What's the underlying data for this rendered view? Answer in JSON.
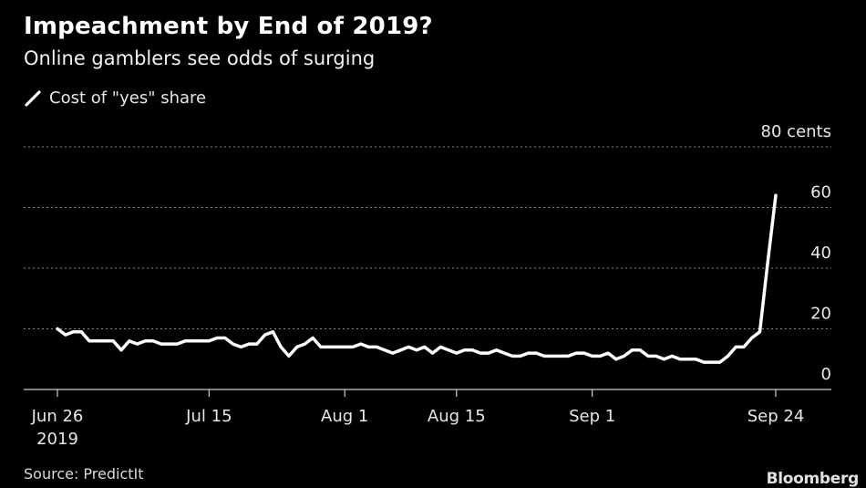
{
  "header": {
    "title": "Impeachment by End of 2019?",
    "subtitle": "Online gamblers see odds of surging"
  },
  "legend": {
    "label": "Cost of \"yes\" share"
  },
  "footer": {
    "source": "Source: PredictIt",
    "brand": "Bloomberg"
  },
  "colors": {
    "background": "#000000",
    "line": "#ffffff",
    "grid": "#888888"
  },
  "chart_data": {
    "type": "line",
    "title": "Impeachment by End of 2019?",
    "subtitle": "Online gamblers see odds of surging",
    "xlabel": "",
    "ylabel": "",
    "ylim": [
      0,
      80
    ],
    "yticks": [
      {
        "value": 0,
        "label": "0"
      },
      {
        "value": 20,
        "label": "20"
      },
      {
        "value": 40,
        "label": "40"
      },
      {
        "value": 60,
        "label": "60"
      },
      {
        "value": 80,
        "label": "80 cents"
      }
    ],
    "xlim": [
      "2019-06-26",
      "2019-09-24"
    ],
    "xticks": [
      {
        "date": "2019-06-26",
        "label": "Jun 26",
        "sublabel": "2019"
      },
      {
        "date": "2019-07-15",
        "label": "Jul 15"
      },
      {
        "date": "2019-08-01",
        "label": "Aug 1"
      },
      {
        "date": "2019-08-15",
        "label": "Aug 15"
      },
      {
        "date": "2019-09-01",
        "label": "Sep 1"
      },
      {
        "date": "2019-09-24",
        "label": "Sep 24"
      }
    ],
    "grid": true,
    "legend_position": "top-left",
    "series": [
      {
        "name": "Cost of \"yes\" share",
        "points": [
          [
            "2019-06-26",
            20
          ],
          [
            "2019-06-27",
            18
          ],
          [
            "2019-06-28",
            19
          ],
          [
            "2019-06-29",
            19
          ],
          [
            "2019-06-30",
            16
          ],
          [
            "2019-07-01",
            16
          ],
          [
            "2019-07-02",
            16
          ],
          [
            "2019-07-03",
            16
          ],
          [
            "2019-07-04",
            13
          ],
          [
            "2019-07-05",
            16
          ],
          [
            "2019-07-06",
            15
          ],
          [
            "2019-07-07",
            16
          ],
          [
            "2019-07-08",
            16
          ],
          [
            "2019-07-09",
            15
          ],
          [
            "2019-07-10",
            15
          ],
          [
            "2019-07-11",
            15
          ],
          [
            "2019-07-12",
            16
          ],
          [
            "2019-07-13",
            16
          ],
          [
            "2019-07-14",
            16
          ],
          [
            "2019-07-15",
            16
          ],
          [
            "2019-07-16",
            17
          ],
          [
            "2019-07-17",
            17
          ],
          [
            "2019-07-18",
            15
          ],
          [
            "2019-07-19",
            14
          ],
          [
            "2019-07-20",
            15
          ],
          [
            "2019-07-21",
            15
          ],
          [
            "2019-07-22",
            18
          ],
          [
            "2019-07-23",
            19
          ],
          [
            "2019-07-24",
            14
          ],
          [
            "2019-07-25",
            11
          ],
          [
            "2019-07-26",
            14
          ],
          [
            "2019-07-27",
            15
          ],
          [
            "2019-07-28",
            17
          ],
          [
            "2019-07-29",
            14
          ],
          [
            "2019-07-30",
            14
          ],
          [
            "2019-07-31",
            14
          ],
          [
            "2019-08-01",
            14
          ],
          [
            "2019-08-02",
            14
          ],
          [
            "2019-08-03",
            15
          ],
          [
            "2019-08-04",
            14
          ],
          [
            "2019-08-05",
            14
          ],
          [
            "2019-08-06",
            13
          ],
          [
            "2019-08-07",
            12
          ],
          [
            "2019-08-08",
            13
          ],
          [
            "2019-08-09",
            14
          ],
          [
            "2019-08-10",
            13
          ],
          [
            "2019-08-11",
            14
          ],
          [
            "2019-08-12",
            12
          ],
          [
            "2019-08-13",
            14
          ],
          [
            "2019-08-14",
            13
          ],
          [
            "2019-08-15",
            12
          ],
          [
            "2019-08-16",
            13
          ],
          [
            "2019-08-17",
            13
          ],
          [
            "2019-08-18",
            12
          ],
          [
            "2019-08-19",
            12
          ],
          [
            "2019-08-20",
            13
          ],
          [
            "2019-08-21",
            12
          ],
          [
            "2019-08-22",
            11
          ],
          [
            "2019-08-23",
            11
          ],
          [
            "2019-08-24",
            12
          ],
          [
            "2019-08-25",
            12
          ],
          [
            "2019-08-26",
            11
          ],
          [
            "2019-08-27",
            11
          ],
          [
            "2019-08-28",
            11
          ],
          [
            "2019-08-29",
            11
          ],
          [
            "2019-08-30",
            12
          ],
          [
            "2019-08-31",
            12
          ],
          [
            "2019-09-01",
            11
          ],
          [
            "2019-09-02",
            11
          ],
          [
            "2019-09-03",
            12
          ],
          [
            "2019-09-04",
            10
          ],
          [
            "2019-09-05",
            11
          ],
          [
            "2019-09-06",
            13
          ],
          [
            "2019-09-07",
            13
          ],
          [
            "2019-09-08",
            11
          ],
          [
            "2019-09-09",
            11
          ],
          [
            "2019-09-10",
            10
          ],
          [
            "2019-09-11",
            11
          ],
          [
            "2019-09-12",
            10
          ],
          [
            "2019-09-13",
            10
          ],
          [
            "2019-09-14",
            10
          ],
          [
            "2019-09-15",
            9
          ],
          [
            "2019-09-16",
            9
          ],
          [
            "2019-09-17",
            9
          ],
          [
            "2019-09-18",
            11
          ],
          [
            "2019-09-19",
            14
          ],
          [
            "2019-09-20",
            14
          ],
          [
            "2019-09-21",
            17
          ],
          [
            "2019-09-22",
            19
          ],
          [
            "2019-09-23",
            42
          ],
          [
            "2019-09-24",
            64
          ]
        ]
      }
    ]
  }
}
